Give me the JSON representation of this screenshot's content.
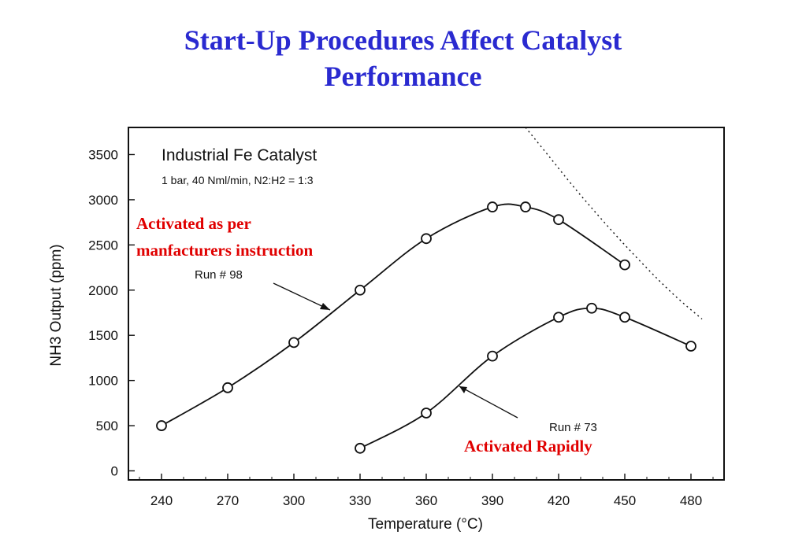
{
  "slide": {
    "title_line1": "Start-Up Procedures Affect Catalyst",
    "title_line2": "Performance"
  },
  "chart_data": {
    "type": "line",
    "title": "Industrial Fe Catalyst",
    "subtitle": "1 bar, 40 Nml/min, N2:H2 = 1:3",
    "xlabel": "Temperature (°C)",
    "ylabel": "NH3 Output (ppm)",
    "xlim": [
      225,
      495
    ],
    "ylim": [
      -100,
      3800
    ],
    "xticks": [
      240,
      270,
      300,
      330,
      360,
      390,
      420,
      450,
      480
    ],
    "yticks": [
      0,
      500,
      1000,
      1500,
      2000,
      2500,
      3000,
      3500
    ],
    "grid": false,
    "series": [
      {
        "name": "Run # 98",
        "x": [
          240,
          270,
          300,
          330,
          360,
          390,
          405,
          420,
          450
        ],
        "y": [
          500,
          920,
          1420,
          2000,
          2570,
          2920,
          2920,
          2780,
          2280
        ]
      },
      {
        "name": "Run # 73",
        "x": [
          330,
          360,
          390,
          420,
          435,
          450,
          480
        ],
        "y": [
          250,
          640,
          1270,
          1700,
          1800,
          1700,
          1380
        ]
      }
    ],
    "annotations": {
      "run98_label": "Run # 98",
      "run73_label": "Run # 73",
      "note_run98_line1": "Activated as per",
      "note_run98_line2": "manfacturers instruction",
      "note_run73": "Activated Rapidly"
    },
    "limit_curve": {
      "x": [
        405,
        415,
        430,
        450,
        470,
        485
      ],
      "y": [
        3800,
        3500,
        3050,
        2500,
        2000,
        1680
      ]
    }
  }
}
